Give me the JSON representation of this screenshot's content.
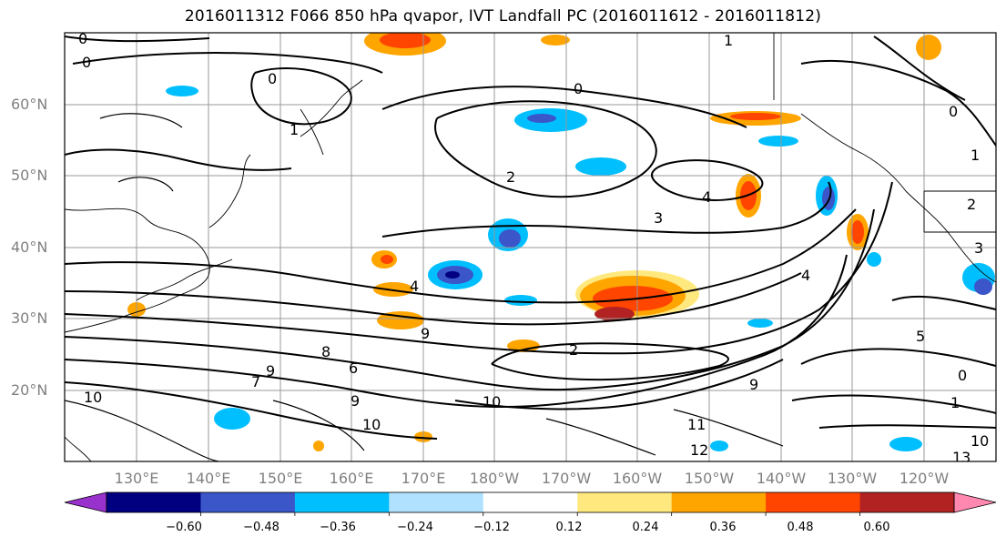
{
  "title": "2016011312 F066 850 hPa qvapor, IVT Landfall PC (2016011612 - 2016011812)",
  "lat_labels": [
    "60°N",
    "50°N",
    "40°N",
    "30°N",
    "20°N"
  ],
  "lon_labels": [
    "130°E",
    "140°E",
    "150°E",
    "160°E",
    "170°E",
    "180°W",
    "170°W",
    "160°W",
    "150°W",
    "140°W",
    "130°W",
    "120°W"
  ],
  "colorbar": {
    "ticks": [
      "−0.60",
      "−0.48",
      "−0.36",
      "−0.24",
      "−0.12",
      "0.12",
      "0.24",
      "0.36",
      "0.48",
      "0.60"
    ],
    "colors": [
      "#9932cc",
      "#000080",
      "#3a56c8",
      "#00bfff",
      "#b0e2ff",
      "#ffffff",
      "#ffe97f",
      "#ffa500",
      "#ff4500",
      "#b22222",
      "#ff88b0"
    ]
  },
  "contour_labels": [
    "0",
    "1",
    "2",
    "3",
    "4",
    "5",
    "6",
    "7",
    "8",
    "9",
    "10",
    "11",
    "12",
    "13"
  ],
  "grid": true
}
